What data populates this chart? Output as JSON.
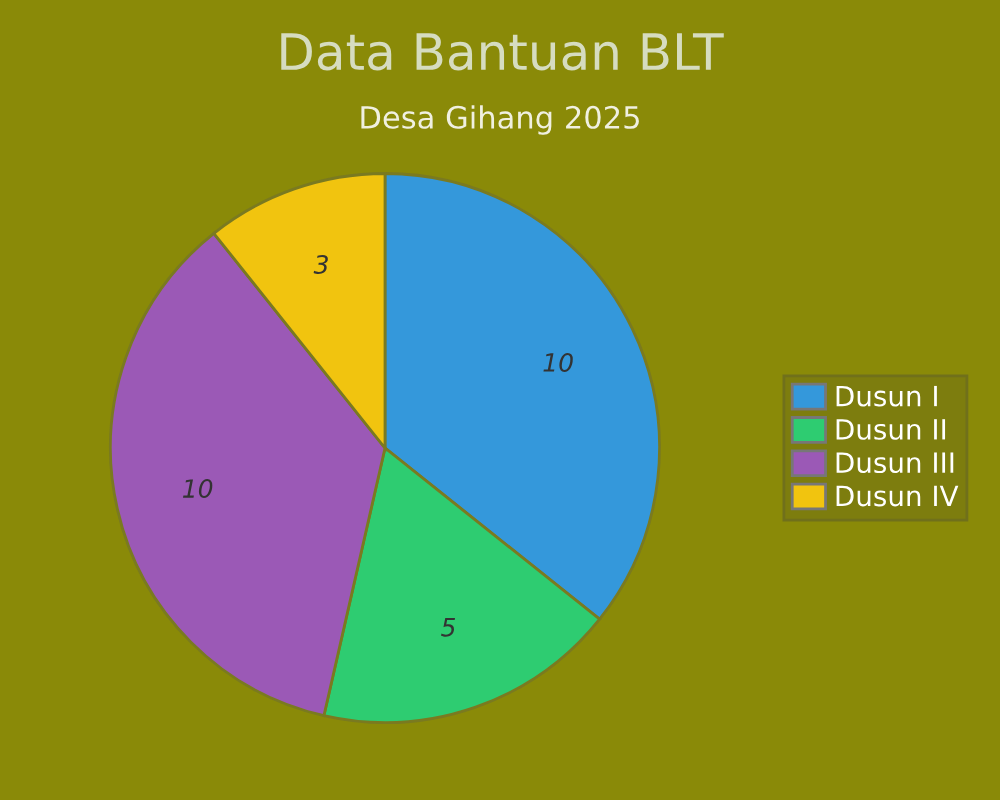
{
  "chart_data": {
    "type": "pie",
    "title": "Data Bantuan BLT",
    "subtitle": "Desa Gihang 2025",
    "categories": [
      "Dusun I",
      "Dusun II",
      "Dusun III",
      "Dusun IV"
    ],
    "values": [
      10,
      5,
      10,
      3
    ],
    "colors": [
      "#3498db",
      "#2ecc71",
      "#9b59b6",
      "#f1c40f"
    ],
    "data_labels": true,
    "legend": "right"
  }
}
